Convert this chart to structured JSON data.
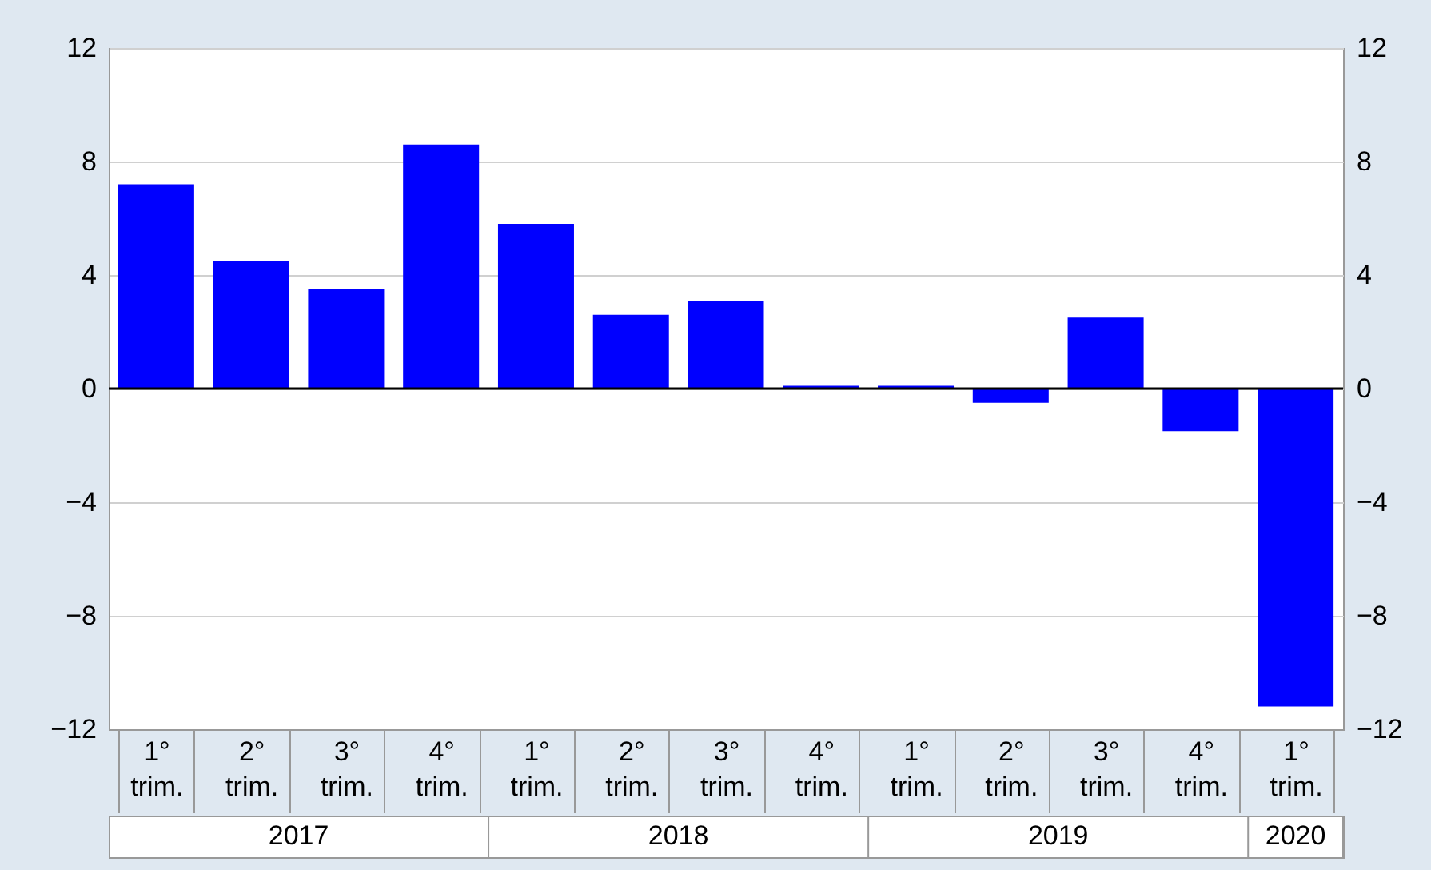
{
  "chart_data": {
    "type": "bar",
    "categories": [
      "1° trim.",
      "2° trim.",
      "3° trim.",
      "4° trim.",
      "1° trim.",
      "2° trim.",
      "3° trim.",
      "4° trim.",
      "1° trim.",
      "2° trim.",
      "3° trim.",
      "4° trim.",
      "1° trim."
    ],
    "values": [
      7.2,
      4.5,
      3.5,
      8.6,
      5.8,
      2.6,
      3.1,
      0.1,
      0.1,
      -0.5,
      2.5,
      -1.5,
      -11.2
    ],
    "color": "#0000ff",
    "ylim": [
      -12,
      12
    ],
    "yticks": [
      -12,
      -8,
      -4,
      0,
      4,
      8,
      12
    ],
    "y2lim": [
      -12,
      12
    ],
    "y2ticks": [
      -12,
      -8,
      -4,
      0,
      4,
      8,
      12
    ],
    "grid": "y",
    "ref_lines": [
      {
        "axis": "y",
        "value": 0,
        "color": "#000000"
      }
    ],
    "annotations": [
      "2017",
      "2018",
      "2019",
      "2020"
    ]
  }
}
